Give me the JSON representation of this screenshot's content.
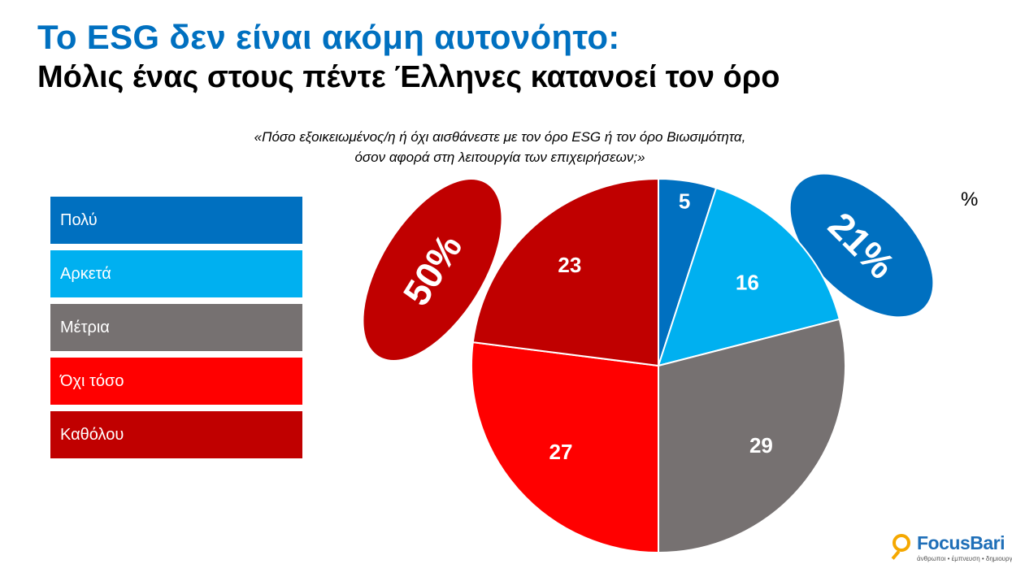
{
  "title_line1": "Το ESG δεν είναι ακόμη αυτονόητο:",
  "title_line2": "Μόλις ένας στους πέντε Έλληνες κατανοεί τον όρο",
  "question_line1": "«Πόσο εξοικειωμένος/η ή όχι αισθάνεστε με τον όρο ESG ή τον όρο Βιωσιμότητα,",
  "question_line2": "όσον αφορά στη λειτουργία των επιχειρήσεων;»",
  "unit": "%",
  "chart_data": {
    "type": "pie",
    "categories": [
      "Πολύ",
      "Αρκετά",
      "Μέτρια",
      "Όχι τόσο",
      "Καθόλου"
    ],
    "values": [
      5,
      16,
      29,
      27,
      23
    ],
    "colors": [
      "#0070c0",
      "#00b0f0",
      "#767171",
      "#ff0000",
      "#c00000"
    ],
    "unit": "%",
    "legend_position": "left",
    "annotations": [
      {
        "text": "21%",
        "color": "#0070c0",
        "groups": [
          "Πολύ",
          "Αρκετά"
        ]
      },
      {
        "text": "50%",
        "color": "#c00000",
        "groups": [
          "Όχι τόσο",
          "Καθόλου"
        ]
      }
    ]
  },
  "logo": {
    "brand": "FocusBari",
    "tagline": "άνθρωποι • έμπνευση • δημιουργία"
  }
}
